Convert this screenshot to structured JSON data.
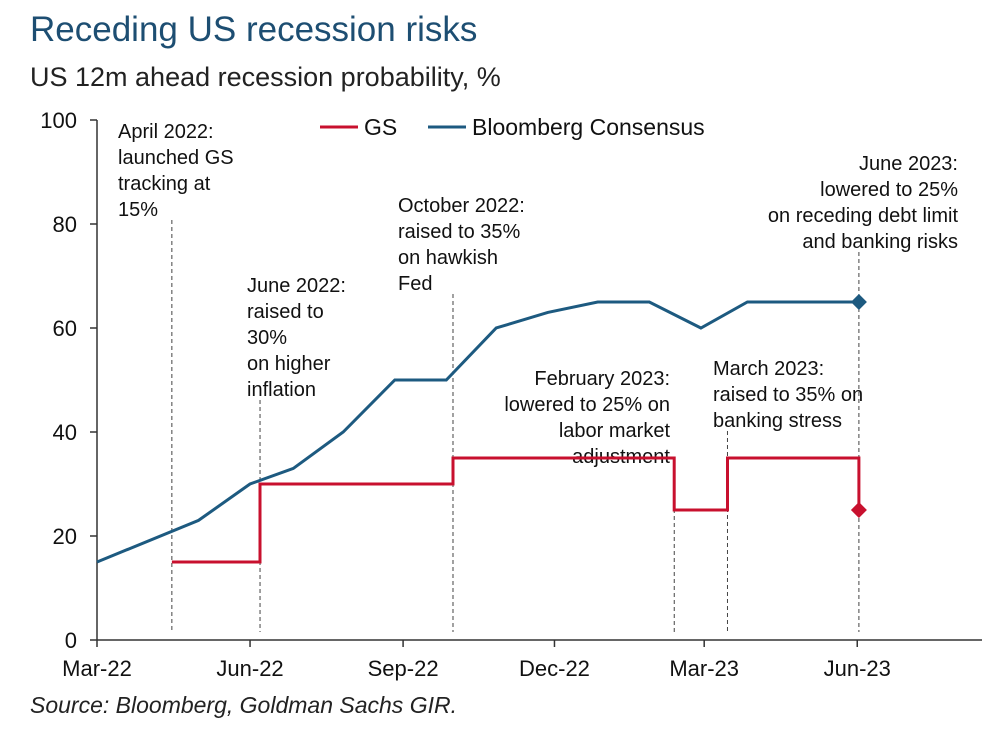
{
  "title": "Receding US recession risks",
  "subtitle": "US 12m ahead recession probability, %",
  "source": "Source: Bloomberg, Goldman Sachs GIR.",
  "colors": {
    "gs": "#c8102e",
    "bloomberg": "#1d5a80",
    "axis": "#333333",
    "guide": "#444444"
  },
  "chart_data": {
    "type": "line",
    "xlabel": "",
    "ylabel": "",
    "x_tick_labels": [
      "Mar-22",
      "Jun-22",
      "Sep-22",
      "Dec-22",
      "Mar-23",
      "Jun-23"
    ],
    "x_tick_dates": [
      "2022-03-01",
      "2022-06-01",
      "2022-09-01",
      "2022-12-01",
      "2023-03-01",
      "2023-06-01"
    ],
    "xlim": [
      "2022-03-01",
      "2023-08-15"
    ],
    "y_ticks": [
      0,
      20,
      40,
      60,
      80,
      100
    ],
    "ylim": [
      0,
      100
    ],
    "grid": false,
    "legend_position": "top",
    "series": [
      {
        "name": "GS",
        "step": true,
        "points": [
          [
            "2022-04-15",
            15
          ],
          [
            "2022-06-07",
            15
          ],
          [
            "2022-06-07",
            30
          ],
          [
            "2022-10-01",
            30
          ],
          [
            "2022-10-01",
            35
          ],
          [
            "2023-02-11",
            35
          ],
          [
            "2023-02-11",
            25
          ],
          [
            "2023-03-15",
            25
          ],
          [
            "2023-03-15",
            35
          ],
          [
            "2023-06-02",
            35
          ],
          [
            "2023-06-02",
            25
          ]
        ],
        "end_marker": [
          "2023-06-02",
          25
        ]
      },
      {
        "name": "Bloomberg Consensus",
        "step": false,
        "points": [
          [
            "2022-03-01",
            15
          ],
          [
            "2022-05-01",
            23
          ],
          [
            "2022-06-01",
            30
          ],
          [
            "2022-06-27",
            33
          ],
          [
            "2022-07-27",
            40
          ],
          [
            "2022-08-27",
            50
          ],
          [
            "2022-09-27",
            50
          ],
          [
            "2022-10-27",
            60
          ],
          [
            "2022-11-27",
            63
          ],
          [
            "2022-12-27",
            65
          ],
          [
            "2023-01-27",
            65
          ],
          [
            "2023-02-27",
            60
          ],
          [
            "2023-03-27",
            65
          ],
          [
            "2023-06-02",
            65
          ]
        ],
        "end_marker": [
          "2023-06-02",
          65
        ]
      }
    ],
    "annotations": [
      {
        "lines": [
          "April 2022:",
          "launched GS",
          "tracking at",
          "15%"
        ],
        "date": "2022-04-15",
        "align": "left"
      },
      {
        "lines": [
          "June 2022:",
          "raised to",
          "30%",
          "on higher",
          "inflation"
        ],
        "date": "2022-06-07",
        "align": "left"
      },
      {
        "lines": [
          "October 2022:",
          "raised to 35%",
          "on hawkish",
          "Fed"
        ],
        "date": "2022-10-01",
        "align": "left"
      },
      {
        "lines": [
          "February 2023:",
          "lowered to 25% on",
          "labor market",
          "adjustment"
        ],
        "date": "2023-02-11",
        "align": "right"
      },
      {
        "lines": [
          "March 2023:",
          "raised to 35% on",
          "banking stress"
        ],
        "date": "2023-03-15",
        "align": "left"
      },
      {
        "lines": [
          "June 2023:",
          "lowered to 25%",
          "on receding debt limit",
          "and banking risks"
        ],
        "date": "2023-06-02",
        "align": "right"
      }
    ]
  }
}
